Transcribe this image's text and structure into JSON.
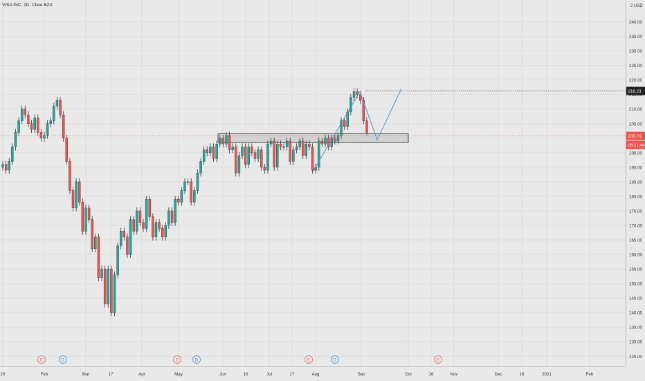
{
  "symbol_title": "VISA INC, 1D, Cboe BZX",
  "currency": "USD",
  "colors": {
    "up": "#26a69a",
    "down": "#ef5350",
    "grid": "#dcdcdc",
    "line": "#4f8cc9"
  },
  "chart_data": {
    "type": "candlestick",
    "title": "VISA INC, 1D, Cboe BZX",
    "y_axis": {
      "ticks": [
        "240.00",
        "235.00",
        "230.00",
        "225.00",
        "220.00",
        "215.00",
        "210.00",
        "205.00",
        "200.00",
        "195.00",
        "190.00",
        "185.00",
        "180.00",
        "175.00",
        "170.00",
        "165.00",
        "160.00",
        "155.00",
        "150.00",
        "145.00",
        "140.00",
        "135.00",
        "130.00",
        "125.00"
      ],
      "range": [
        121.5,
        247.5
      ]
    },
    "x_axis": {
      "ticks": [
        "20",
        "Feb",
        "Mar",
        "17",
        "Apr",
        "May",
        "Jun",
        "16",
        "Jul",
        "17",
        "Aug",
        "Sep",
        "Oct",
        "16",
        "Nov",
        "Dec",
        "16",
        "2021",
        "Feb"
      ]
    },
    "last_price_label": "216.23",
    "current_price_label": "200.76",
    "countdown_label": "06:21:44",
    "event_markers": [
      "E",
      "D",
      "E",
      "D",
      "E",
      "D",
      "E"
    ],
    "zone": {
      "price_low": 198.5,
      "price_high": 201.5
    },
    "price_path": [
      191,
      189,
      192,
      197,
      202,
      206,
      210,
      208,
      205,
      203,
      207,
      202,
      200,
      201,
      205,
      206,
      211,
      213,
      208,
      200,
      192,
      182,
      176,
      185,
      178,
      168,
      176,
      172,
      162,
      166,
      152,
      155,
      143,
      155,
      140,
      153,
      163,
      168,
      166,
      160,
      172,
      168,
      175,
      171,
      169,
      179,
      173,
      166,
      171,
      169,
      166,
      170,
      175,
      171,
      179,
      178,
      182,
      185,
      185,
      178,
      182,
      188,
      192,
      196,
      195,
      197,
      193,
      198,
      200,
      198,
      201,
      196,
      197,
      188,
      194,
      197,
      191,
      197,
      195,
      193,
      196,
      190,
      189,
      198,
      199,
      190,
      198,
      197,
      197,
      199,
      192,
      196,
      197,
      199,
      194,
      198,
      197,
      189,
      190,
      199,
      198,
      200,
      197,
      200,
      199,
      201,
      206,
      204,
      209,
      214,
      216,
      215,
      213,
      206,
      202
    ]
  }
}
